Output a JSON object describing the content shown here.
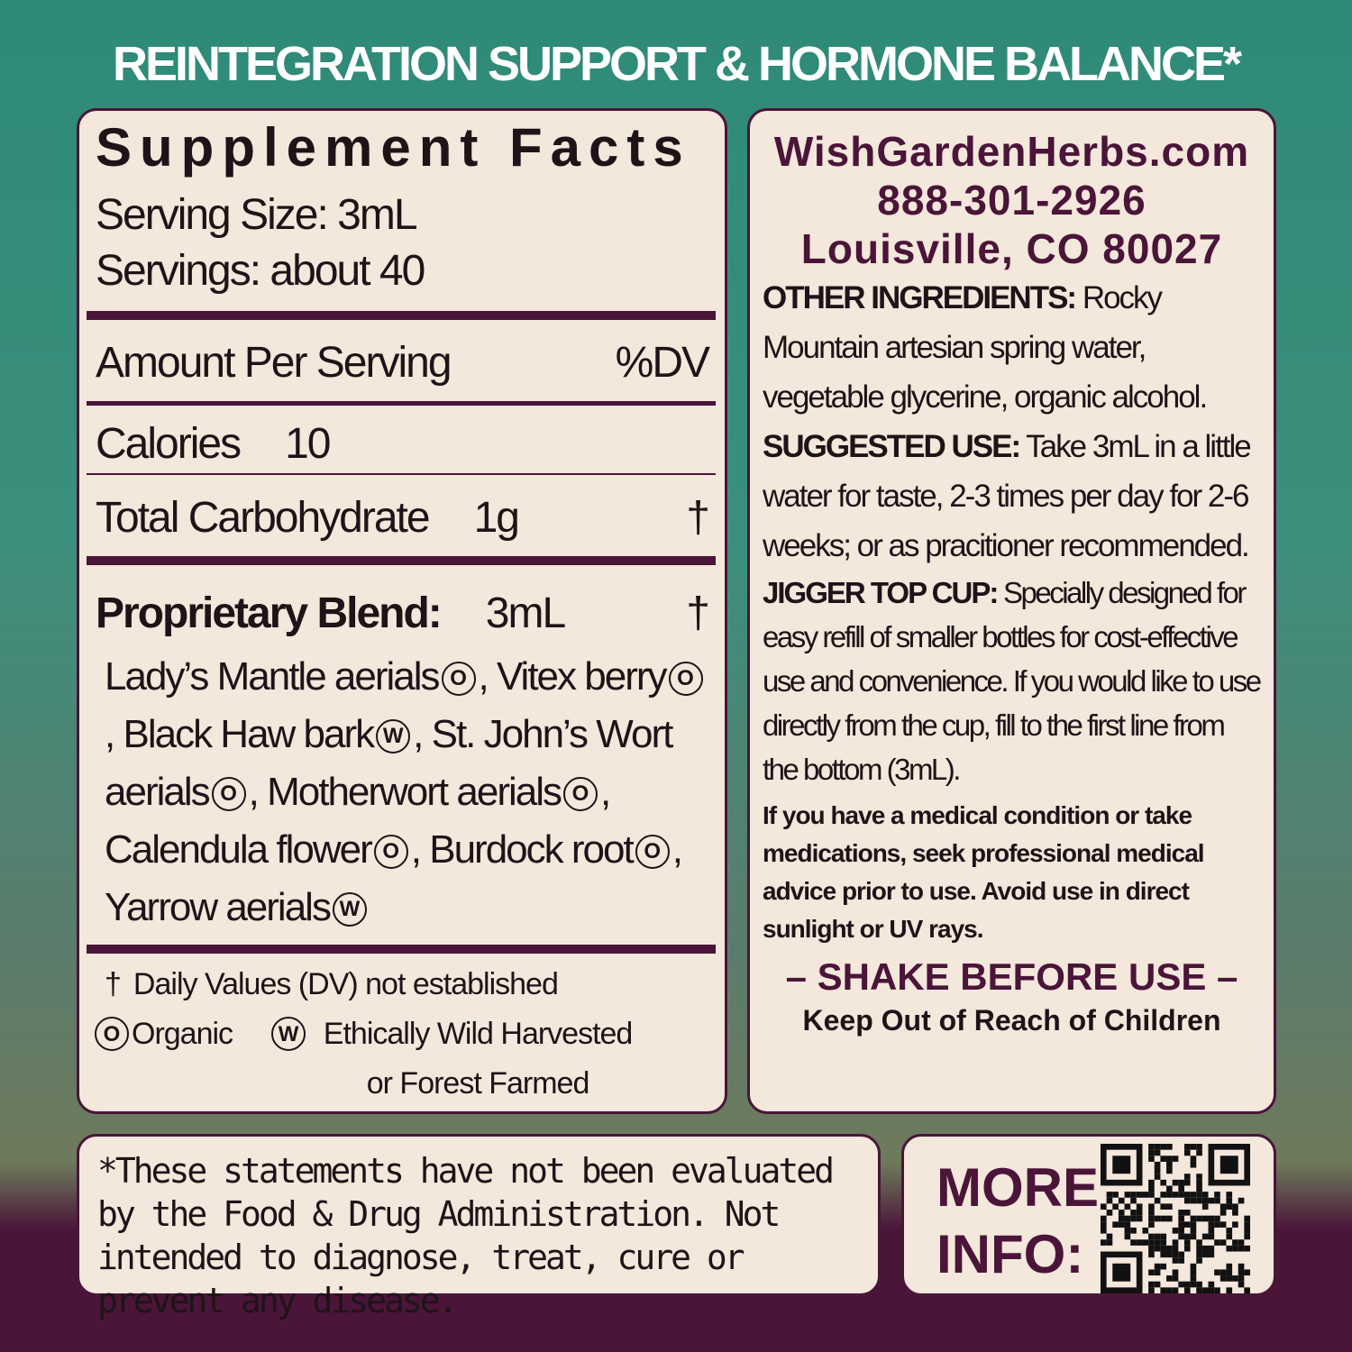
{
  "header": {
    "title": "REINTEGRATION SUPPORT & HORMONE BALANCE*"
  },
  "facts": {
    "title": "Supplement Facts",
    "serving_size": "Serving Size: 3mL",
    "servings": "Servings: about 40",
    "amount_per_serving": "Amount Per Serving",
    "dv_header": "%DV",
    "rows": [
      {
        "name": "Calories",
        "amount": "10"
      },
      {
        "name": "Total Carbohydrate",
        "amount": "1g",
        "dv": "†"
      }
    ],
    "blend": {
      "name": "Proprietary Blend:",
      "amount": "3mL",
      "dv": "†",
      "ingredients": [
        {
          "name": "Lady’s Mantle aerials",
          "mark": "O",
          "sep": ","
        },
        {
          "name": "Vitex berry",
          "mark": "O",
          "sep": ","
        },
        {
          "name": "Black Haw bark",
          "mark": "W",
          "sep": ","
        },
        {
          "name": "St. John’s Wort aerials",
          "mark": "O",
          "sep": ","
        },
        {
          "name": "Motherwort aerials",
          "mark": "O",
          "sep": ","
        },
        {
          "name": "Calendula flower",
          "mark": "O",
          "sep": ","
        },
        {
          "name": "Burdock root",
          "mark": "O",
          "sep": ","
        },
        {
          "name": "Yarrow aerials",
          "mark": "W"
        }
      ]
    },
    "footnotes": [
      {
        "symbol": "†",
        "text": "Daily Values (DV) not established"
      },
      {
        "symbol": "O",
        "text": "Organic"
      },
      {
        "symbol": "W",
        "text": "Ethically Wild Harvested or Forest Farmed"
      }
    ]
  },
  "contact": {
    "website": "WishGardenHerbs.com",
    "phone": "888-301-2926",
    "city": "Louisville, CO 80027"
  },
  "sections": [
    {
      "label": "OTHER INGREDIENTS:",
      "text": "Rocky Mountain artesian spring water, vegetable glycerine, organic alcohol."
    },
    {
      "label": "SUGGESTED USE:",
      "text": "Take 3mL in a little water for taste, 2-3 times per day for 2-6 weeks; or as pracitioner recommended."
    },
    {
      "label": "JIGGER TOP CUP:",
      "text": "Specially designed for easy refill of smaller bottles for cost-effective use and convenience. If you would like to use directly from the cup, fill to the first line from the bottom (3mL)."
    }
  ],
  "warning": "If you have a medical condition or take medications, seek professional medical advice prior to use. Avoid use in direct sunlight or UV rays.",
  "shake": "– SHAKE BEFORE USE –",
  "keep_away": "Keep Out of Reach of Children",
  "disclaimer": "*These statements have not been evaluated by the Food & Drug Administration. Not intended to diagnose, treat, cure or prevent any disease.",
  "more_info": "MORE INFO:"
}
